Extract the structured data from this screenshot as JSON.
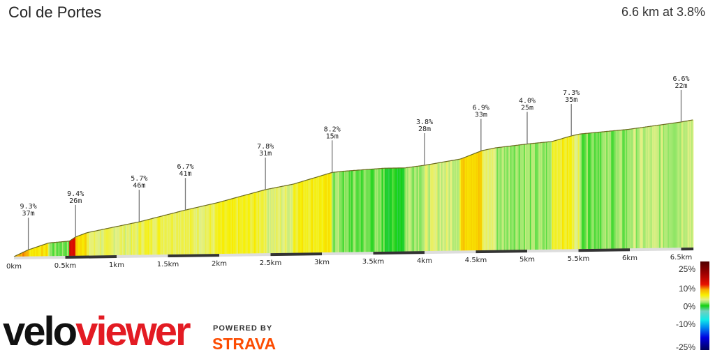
{
  "header": {
    "title": "Col de Portes",
    "summary": "6.6 km at 3.8%"
  },
  "chart_data": {
    "type": "area",
    "xlabel": "",
    "ylabel": "",
    "x_unit": "km",
    "x_ticks": [
      "0km",
      "0.5km",
      "1km",
      "1.5km",
      "2km",
      "2.5km",
      "3km",
      "3.5km",
      "4km",
      "4.5km",
      "5km",
      "5.5km",
      "6km",
      "6.5km"
    ],
    "x_tick_values": [
      0,
      0.5,
      1,
      1.5,
      2,
      2.5,
      3,
      3.5,
      4,
      4.5,
      5,
      5.5,
      6,
      6.5
    ],
    "xlim": [
      0,
      6.62
    ],
    "profile": {
      "distance_km": [
        0,
        0.14,
        0.34,
        0.54,
        0.6,
        0.71,
        1.22,
        1.67,
        1.97,
        2.45,
        2.72,
        3.1,
        3.2,
        3.61,
        3.81,
        4.01,
        4.35,
        4.56,
        4.69,
        5.01,
        5.24,
        5.44,
        5.51,
        5.99,
        6.5,
        6.62
      ],
      "relative_elevation_m": [
        0,
        13,
        26,
        29,
        37,
        45,
        65,
        87,
        100,
        125,
        135,
        157,
        159,
        164,
        164,
        169,
        180,
        196,
        201,
        208,
        212,
        223,
        226,
        234,
        247,
        251
      ]
    },
    "climb_markers": [
      {
        "distance_km": 0.14,
        "gradient": "9.3%",
        "length": "37m"
      },
      {
        "distance_km": 0.6,
        "gradient": "9.4%",
        "length": "26m"
      },
      {
        "distance_km": 1.22,
        "gradient": "5.7%",
        "length": "46m"
      },
      {
        "distance_km": 1.67,
        "gradient": "6.7%",
        "length": "41m"
      },
      {
        "distance_km": 2.45,
        "gradient": "7.8%",
        "length": "31m"
      },
      {
        "distance_km": 3.1,
        "gradient": "8.2%",
        "length": "15m"
      },
      {
        "distance_km": 4.0,
        "gradient": "3.8%",
        "length": "28m"
      },
      {
        "distance_km": 4.55,
        "gradient": "6.9%",
        "length": "33m"
      },
      {
        "distance_km": 5.0,
        "gradient": "4.0%",
        "length": "25m"
      },
      {
        "distance_km": 5.43,
        "gradient": "7.3%",
        "length": "35m"
      },
      {
        "distance_km": 6.5,
        "gradient": "6.6%",
        "length": "22m"
      }
    ],
    "gradient_legend": {
      "labels": [
        "25%",
        "10%",
        "0%",
        "-10%",
        "-25%"
      ],
      "values": [
        25,
        10,
        0,
        -10,
        -25
      ],
      "colormap": [
        {
          "pct": -25,
          "color": "#00005a"
        },
        {
          "pct": -18,
          "color": "#0000e0"
        },
        {
          "pct": -12,
          "color": "#0090f0"
        },
        {
          "pct": -8,
          "color": "#10e8e8"
        },
        {
          "pct": -3,
          "color": "#70d0c0"
        },
        {
          "pct": 0,
          "color": "#10d010"
        },
        {
          "pct": 2,
          "color": "#a0e870"
        },
        {
          "pct": 3.5,
          "color": "#e4f088"
        },
        {
          "pct": 6,
          "color": "#f8f000"
        },
        {
          "pct": 9,
          "color": "#f8b000"
        },
        {
          "pct": 12,
          "color": "#e81000"
        },
        {
          "pct": 18,
          "color": "#a00000"
        },
        {
          "pct": 25,
          "color": "#500000"
        }
      ]
    }
  },
  "branding": {
    "logo_part1": "velo",
    "logo_part2": "viewer",
    "powered_by": "POWERED BY",
    "strava": "STRAVA",
    "strava_color": "#fc4c02",
    "logo_accent": "#e31b23"
  }
}
